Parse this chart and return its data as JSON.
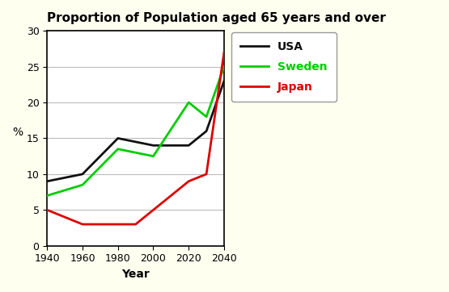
{
  "title": "Proportion of Population aged 65 years and over",
  "xlabel": "Year",
  "ylabel": "%",
  "xlim": [
    1940,
    2040
  ],
  "ylim": [
    0,
    30
  ],
  "xticks": [
    1940,
    1960,
    1980,
    2000,
    2020,
    2040
  ],
  "yticks": [
    0,
    5,
    10,
    15,
    20,
    25,
    30
  ],
  "years": [
    1940,
    1960,
    1980,
    1990,
    2000,
    2020,
    2030,
    2040
  ],
  "usa": [
    9,
    10,
    15,
    14.5,
    14,
    14,
    16,
    23
  ],
  "sweden": [
    7,
    8.5,
    13.5,
    13,
    12.5,
    20,
    18,
    25
  ],
  "japan": [
    5,
    3,
    3,
    3,
    5,
    9,
    10,
    27
  ],
  "usa_color": "#111111",
  "sweden_color": "#00cc00",
  "japan_color": "#dd0000",
  "figure_bg": "#fffff0",
  "plot_bg": "#ffffff",
  "legend_labels": [
    "USA",
    "Sweden",
    "Japan"
  ],
  "legend_colors": [
    "#111111",
    "#00cc00",
    "#dd0000"
  ],
  "title_fontsize": 11,
  "axis_label_fontsize": 10,
  "tick_fontsize": 9,
  "legend_fontsize": 10,
  "linewidth": 2.0
}
